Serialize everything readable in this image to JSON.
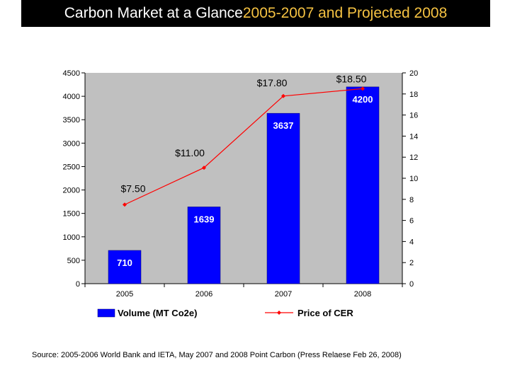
{
  "header": {
    "title_main": "Carbon Market at a Glance ",
    "title_accent": "2005-2007 and Projected 2008"
  },
  "colors": {
    "title_bg": "#000000",
    "title_text": "#ffffff",
    "title_accent": "#f5c242",
    "plot_bg": "#c0c0c0",
    "bar": "#0000ff",
    "bar_label": "#ffffff",
    "line": "#ff0000"
  },
  "chart_data": {
    "type": "bar",
    "categories": [
      "2005",
      "2006",
      "2007",
      "2008"
    ],
    "series": [
      {
        "name": "Volume (MT Co2e)",
        "type": "bar",
        "axis": "left",
        "values": [
          710,
          1639,
          3637,
          4200
        ],
        "labels": [
          "710",
          "1639",
          "3637",
          "4200"
        ]
      },
      {
        "name": "Price of CER",
        "type": "line",
        "axis": "right",
        "values": [
          7.5,
          11.0,
          17.8,
          18.5
        ],
        "labels": [
          "$7.50",
          "$11.00",
          "$17.80",
          "$18.50"
        ]
      }
    ],
    "y_left": {
      "ylim": [
        0,
        4500
      ],
      "ticks": [
        "0",
        "500",
        "1000",
        "1500",
        "2000",
        "2500",
        "3000",
        "3500",
        "4000",
        "4500"
      ]
    },
    "y_right": {
      "ylim": [
        0,
        20
      ],
      "ticks": [
        "0",
        "2",
        "4",
        "6",
        "8",
        "10",
        "12",
        "14",
        "16",
        "18",
        "20"
      ]
    },
    "xlabel": "",
    "ylabel": "",
    "grid": false,
    "legend_position": "bottom"
  },
  "source_note": "Source: 2005-2006 World Bank and IETA, May 2007 and 2008 Point Carbon (Press Relaese Feb 26, 2008)"
}
